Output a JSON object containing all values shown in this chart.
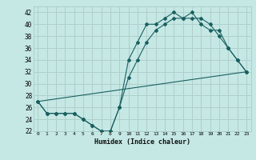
{
  "title": "",
  "xlabel": "Humidex (Indice chaleur)",
  "ylabel": "",
  "bg_color": "#c5e8e5",
  "grid_color": "#aecfcc",
  "line_color": "#1a6060",
  "xlim": [
    -0.5,
    23.5
  ],
  "ylim": [
    22,
    43
  ],
  "yticks": [
    22,
    24,
    26,
    28,
    30,
    32,
    34,
    36,
    38,
    40,
    42
  ],
  "xticks": [
    0,
    1,
    2,
    3,
    4,
    5,
    6,
    7,
    8,
    9,
    10,
    11,
    12,
    13,
    14,
    15,
    16,
    17,
    18,
    19,
    20,
    21,
    22,
    23
  ],
  "line1_x": [
    0,
    1,
    2,
    3,
    4,
    5,
    6,
    7,
    8,
    9,
    10,
    11,
    12,
    13,
    14,
    15,
    16,
    17,
    18,
    19,
    20,
    21,
    22,
    23
  ],
  "line1_y": [
    27,
    25,
    25,
    25,
    25,
    24,
    23,
    22,
    22,
    26,
    34,
    37,
    40,
    40,
    41,
    42,
    41,
    42,
    40,
    39,
    39,
    36,
    34,
    32
  ],
  "line2_x": [
    0,
    1,
    2,
    3,
    4,
    5,
    6,
    7,
    8,
    9,
    10,
    11,
    12,
    13,
    14,
    15,
    16,
    17,
    18,
    19,
    20,
    21,
    22,
    23
  ],
  "line2_y": [
    27,
    25,
    25,
    25,
    25,
    24,
    23,
    22,
    22,
    26,
    31,
    34,
    37,
    39,
    40,
    41,
    41,
    41,
    41,
    40,
    38,
    36,
    34,
    32
  ],
  "line3_x": [
    0,
    23
  ],
  "line3_y": [
    27,
    32
  ]
}
